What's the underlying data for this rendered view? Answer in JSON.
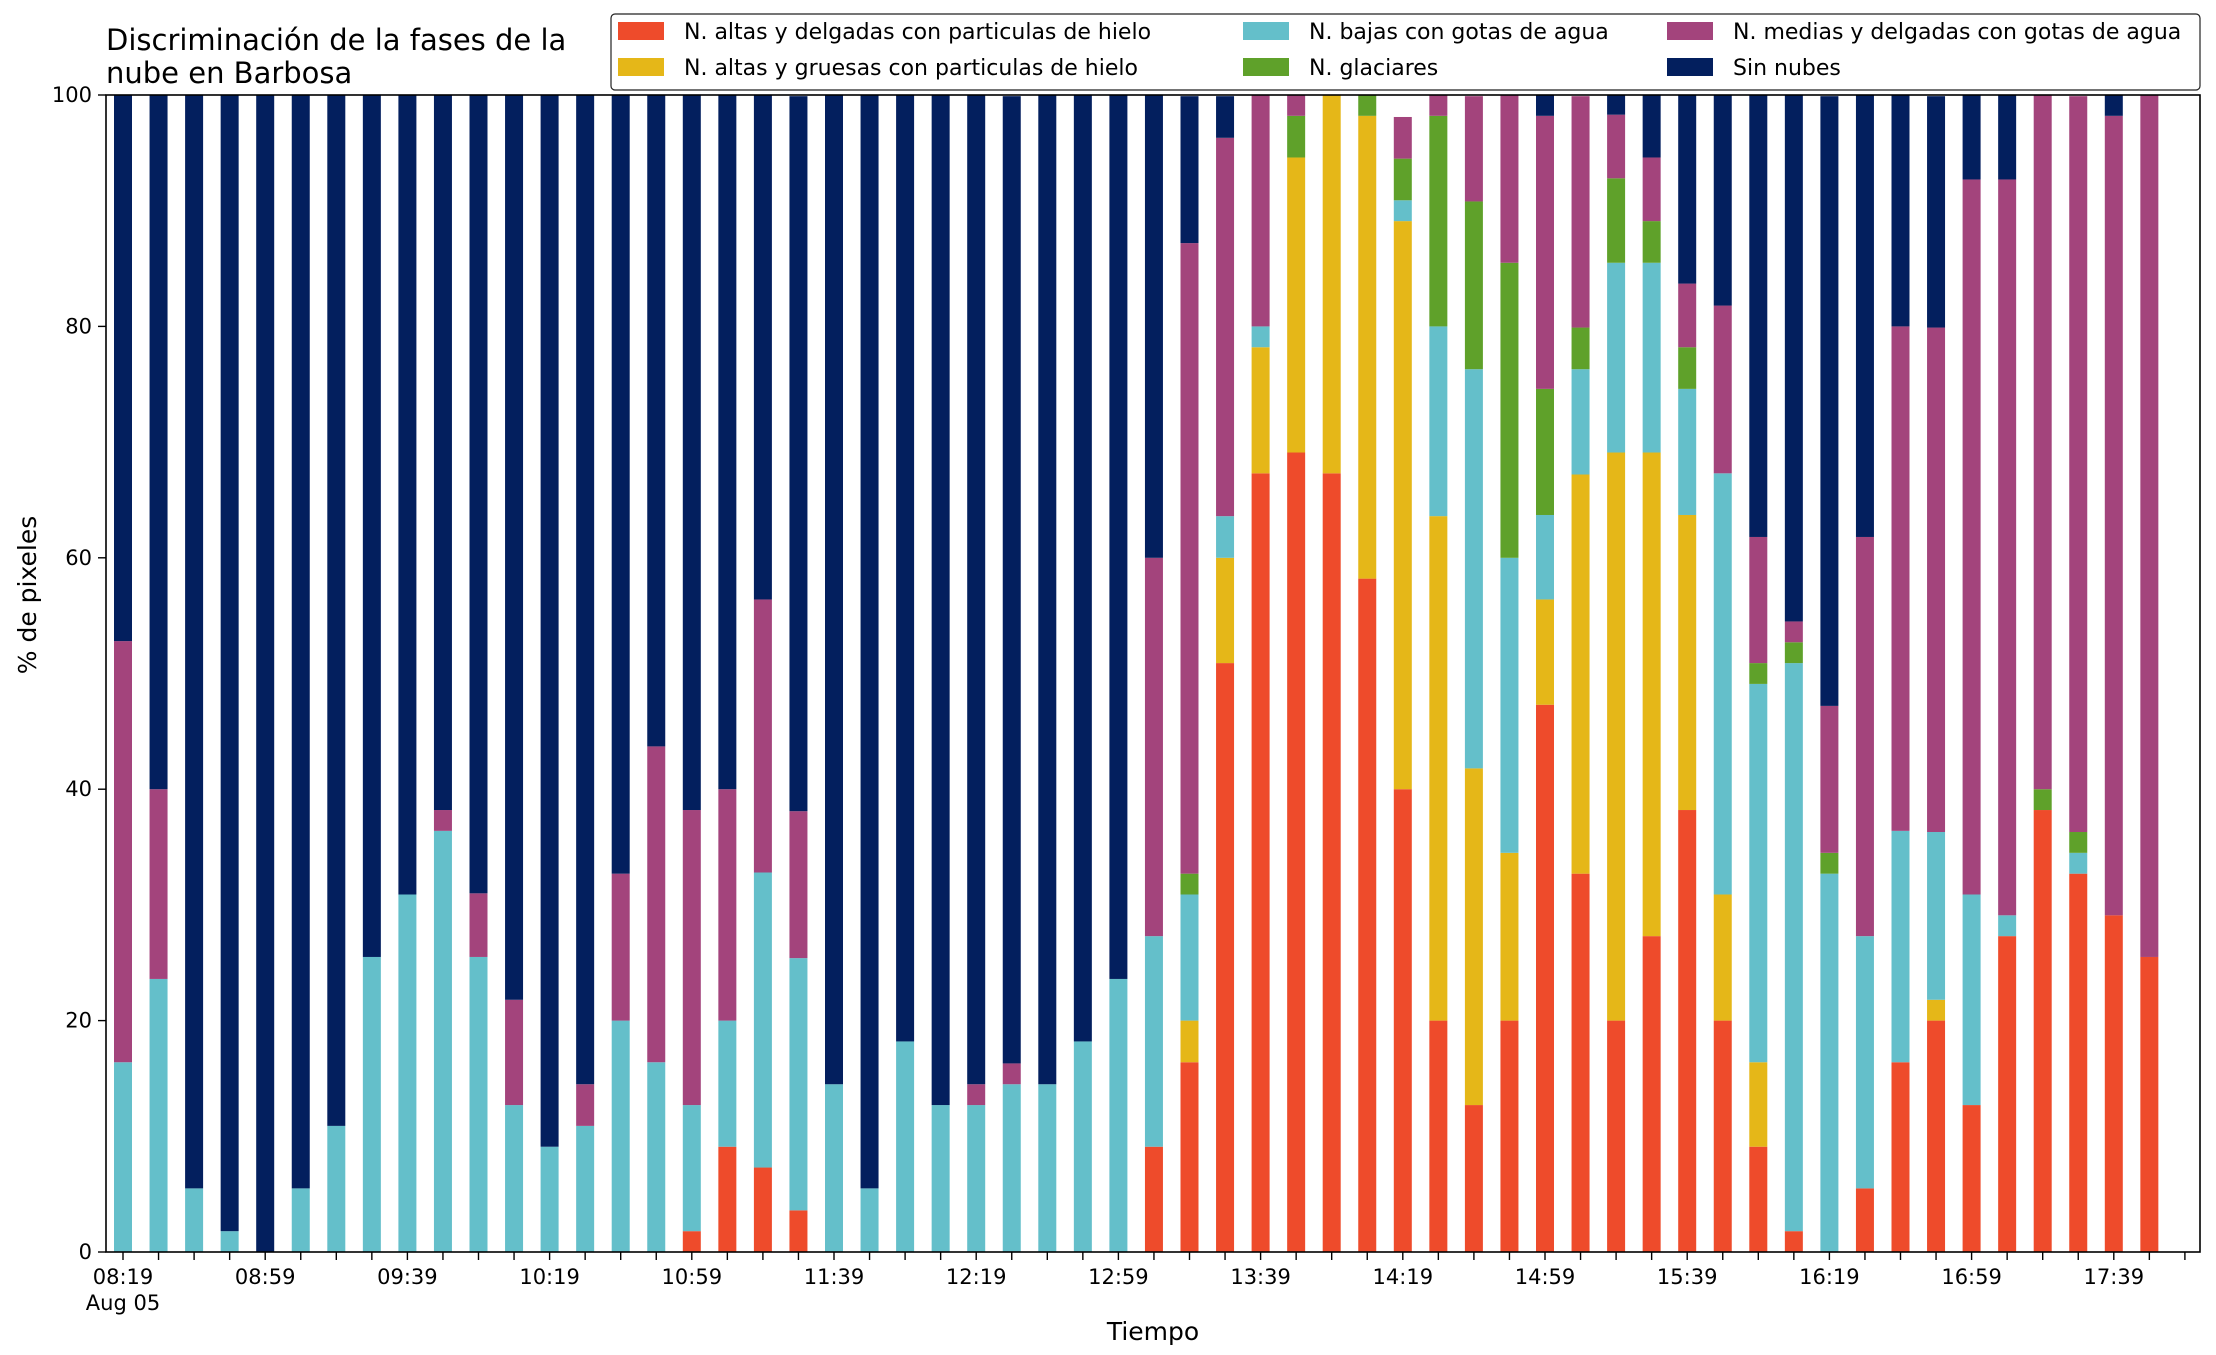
{
  "chart_data": {
    "type": "bar",
    "stacked": true,
    "title": "Discriminación de la fases de la nube en Barbosa",
    "title_lines": [
      "Discriminación de la fases de la",
      "nube en Barbosa"
    ],
    "xlabel": "Tiempo",
    "ylabel": "% de pixeles",
    "ylim": [
      0,
      100
    ],
    "yticks": [
      "0",
      "20",
      "40",
      "60",
      "80",
      "100"
    ],
    "xaxis_note": "Aug 05",
    "x": [
      "08:19",
      "08:29",
      "08:39",
      "08:49",
      "08:59",
      "09:09",
      "09:19",
      "09:29",
      "09:39",
      "09:49",
      "09:59",
      "10:09",
      "10:19",
      "10:29",
      "10:39",
      "10:49",
      "10:59",
      "11:09",
      "11:19",
      "11:29",
      "11:39",
      "11:49",
      "11:59",
      "12:09",
      "12:19",
      "12:29",
      "12:39",
      "12:49",
      "12:59",
      "13:09",
      "13:19",
      "13:29",
      "13:39",
      "13:49",
      "13:59",
      "14:09",
      "14:19",
      "14:29",
      "14:39",
      "14:49",
      "14:59",
      "15:09",
      "15:19",
      "15:29",
      "15:39",
      "15:49",
      "15:59",
      "16:09",
      "16:19",
      "16:29",
      "16:39",
      "16:49",
      "16:59",
      "17:09",
      "17:19",
      "17:29",
      "17:39",
      "17:49"
    ],
    "xtick_labels": [
      "08:19",
      "08:59",
      "09:39",
      "10:19",
      "10:59",
      "11:39",
      "12:19",
      "12:59",
      "13:39",
      "14:19",
      "14:59",
      "15:39",
      "16:19",
      "16:59",
      "17:39"
    ],
    "legend_position": "top",
    "series": [
      {
        "name": "N. altas y delgadas con particulas de hielo",
        "color": "#ee4b2b",
        "values": [
          0,
          0,
          0,
          0,
          0,
          0,
          0,
          0,
          0,
          0,
          0,
          0,
          0,
          0,
          0,
          0,
          1.8,
          9.1,
          7.3,
          3.6,
          0,
          0,
          0,
          0,
          0,
          0,
          0,
          0,
          0,
          9.1,
          16.4,
          50.9,
          67.3,
          69.1,
          67.3,
          58.2,
          40,
          20,
          12.7,
          20,
          47.3,
          32.7,
          20,
          27.3,
          38.2,
          20,
          9.1,
          1.8,
          0,
          5.5,
          16.4,
          20,
          12.7,
          27.3,
          38.2,
          32.7,
          29.1,
          25.5
        ]
      },
      {
        "name": "N. altas y gruesas con particulas de hielo",
        "color": "#e5b718",
        "values": [
          0,
          0,
          0,
          0,
          0,
          0,
          0,
          0,
          0,
          0,
          0,
          0,
          0,
          0,
          0,
          0,
          0,
          0,
          0,
          0,
          0,
          0,
          0,
          0,
          0,
          0,
          0,
          0,
          0,
          0,
          3.6,
          9.1,
          10.9,
          25.5,
          32.7,
          40,
          49.1,
          43.6,
          29.1,
          14.5,
          9.1,
          34.5,
          49.1,
          41.8,
          25.5,
          10.9,
          7.3,
          0,
          0,
          0,
          0,
          1.8,
          0,
          0,
          0,
          0,
          0,
          0
        ]
      },
      {
        "name": "N. bajas con gotas de agua",
        "color": "#64bfca",
        "values": [
          16.4,
          23.6,
          5.5,
          1.8,
          0,
          5.5,
          10.9,
          25.5,
          30.9,
          36.4,
          25.5,
          12.7,
          9.1,
          10.9,
          20,
          16.4,
          10.9,
          10.9,
          25.5,
          21.8,
          14.5,
          5.5,
          18.2,
          12.7,
          12.7,
          14.5,
          14.5,
          18.2,
          23.6,
          18.2,
          10.9,
          3.6,
          1.8,
          0,
          0,
          0,
          1.8,
          16.4,
          34.5,
          25.5,
          7.3,
          9.1,
          16.4,
          16.4,
          10.9,
          36.4,
          32.7,
          49.1,
          32.7,
          21.8,
          20,
          14.5,
          18.2,
          1.8,
          0,
          1.8,
          0,
          0
        ]
      },
      {
        "name": "N. glaciares",
        "color": "#5fa12a",
        "values": [
          0,
          0,
          0,
          0,
          0,
          0,
          0,
          0,
          0,
          0,
          0,
          0,
          0,
          0,
          0,
          0,
          0,
          0,
          0,
          0,
          0,
          0,
          0,
          0,
          0,
          0,
          0,
          0,
          0,
          0,
          1.8,
          0,
          0,
          3.6,
          0,
          1.8,
          3.6,
          18.2,
          14.5,
          25.5,
          10.9,
          3.6,
          7.3,
          3.6,
          3.6,
          0,
          1.8,
          1.8,
          1.8,
          0,
          0,
          0,
          0,
          0,
          1.8,
          1.8,
          0,
          0
        ]
      },
      {
        "name": "N. medias y delgadas con gotas de agua",
        "color": "#a3447c",
        "values": [
          36.4,
          16.4,
          0,
          0,
          0,
          0,
          0,
          0,
          0,
          1.8,
          5.5,
          9.1,
          0,
          3.6,
          12.7,
          27.3,
          25.5,
          20,
          23.6,
          12.7,
          0,
          0,
          0,
          0,
          1.8,
          1.8,
          0,
          0,
          0,
          32.7,
          54.5,
          32.7,
          20,
          1.8,
          0,
          0,
          3.6,
          1.8,
          9.1,
          14.5,
          23.6,
          20,
          5.5,
          5.5,
          5.5,
          14.5,
          10.9,
          1.8,
          12.7,
          34.5,
          43.6,
          43.6,
          61.8,
          63.6,
          60,
          63.6,
          69.1,
          74.5
        ]
      },
      {
        "name": "Sin nubes",
        "color": "#031f5e",
        "values": [
          47.3,
          60,
          94.5,
          98.2,
          100,
          94.5,
          89.1,
          74.5,
          69.1,
          61.8,
          69.1,
          78.2,
          90.9,
          85.5,
          67.3,
          56.4,
          61.8,
          60,
          43.6,
          61.8,
          85.5,
          94.5,
          81.8,
          87.3,
          85.5,
          83.6,
          85.5,
          81.8,
          76.4,
          40,
          12.7,
          3.6,
          0,
          0,
          0,
          0,
          0,
          0,
          0,
          0,
          1.8,
          0,
          1.8,
          5.5,
          16.4,
          18.2,
          38.2,
          45.5,
          52.7,
          38.2,
          20,
          20,
          7.3,
          7.3,
          0,
          0,
          1.8,
          0
        ]
      }
    ]
  }
}
